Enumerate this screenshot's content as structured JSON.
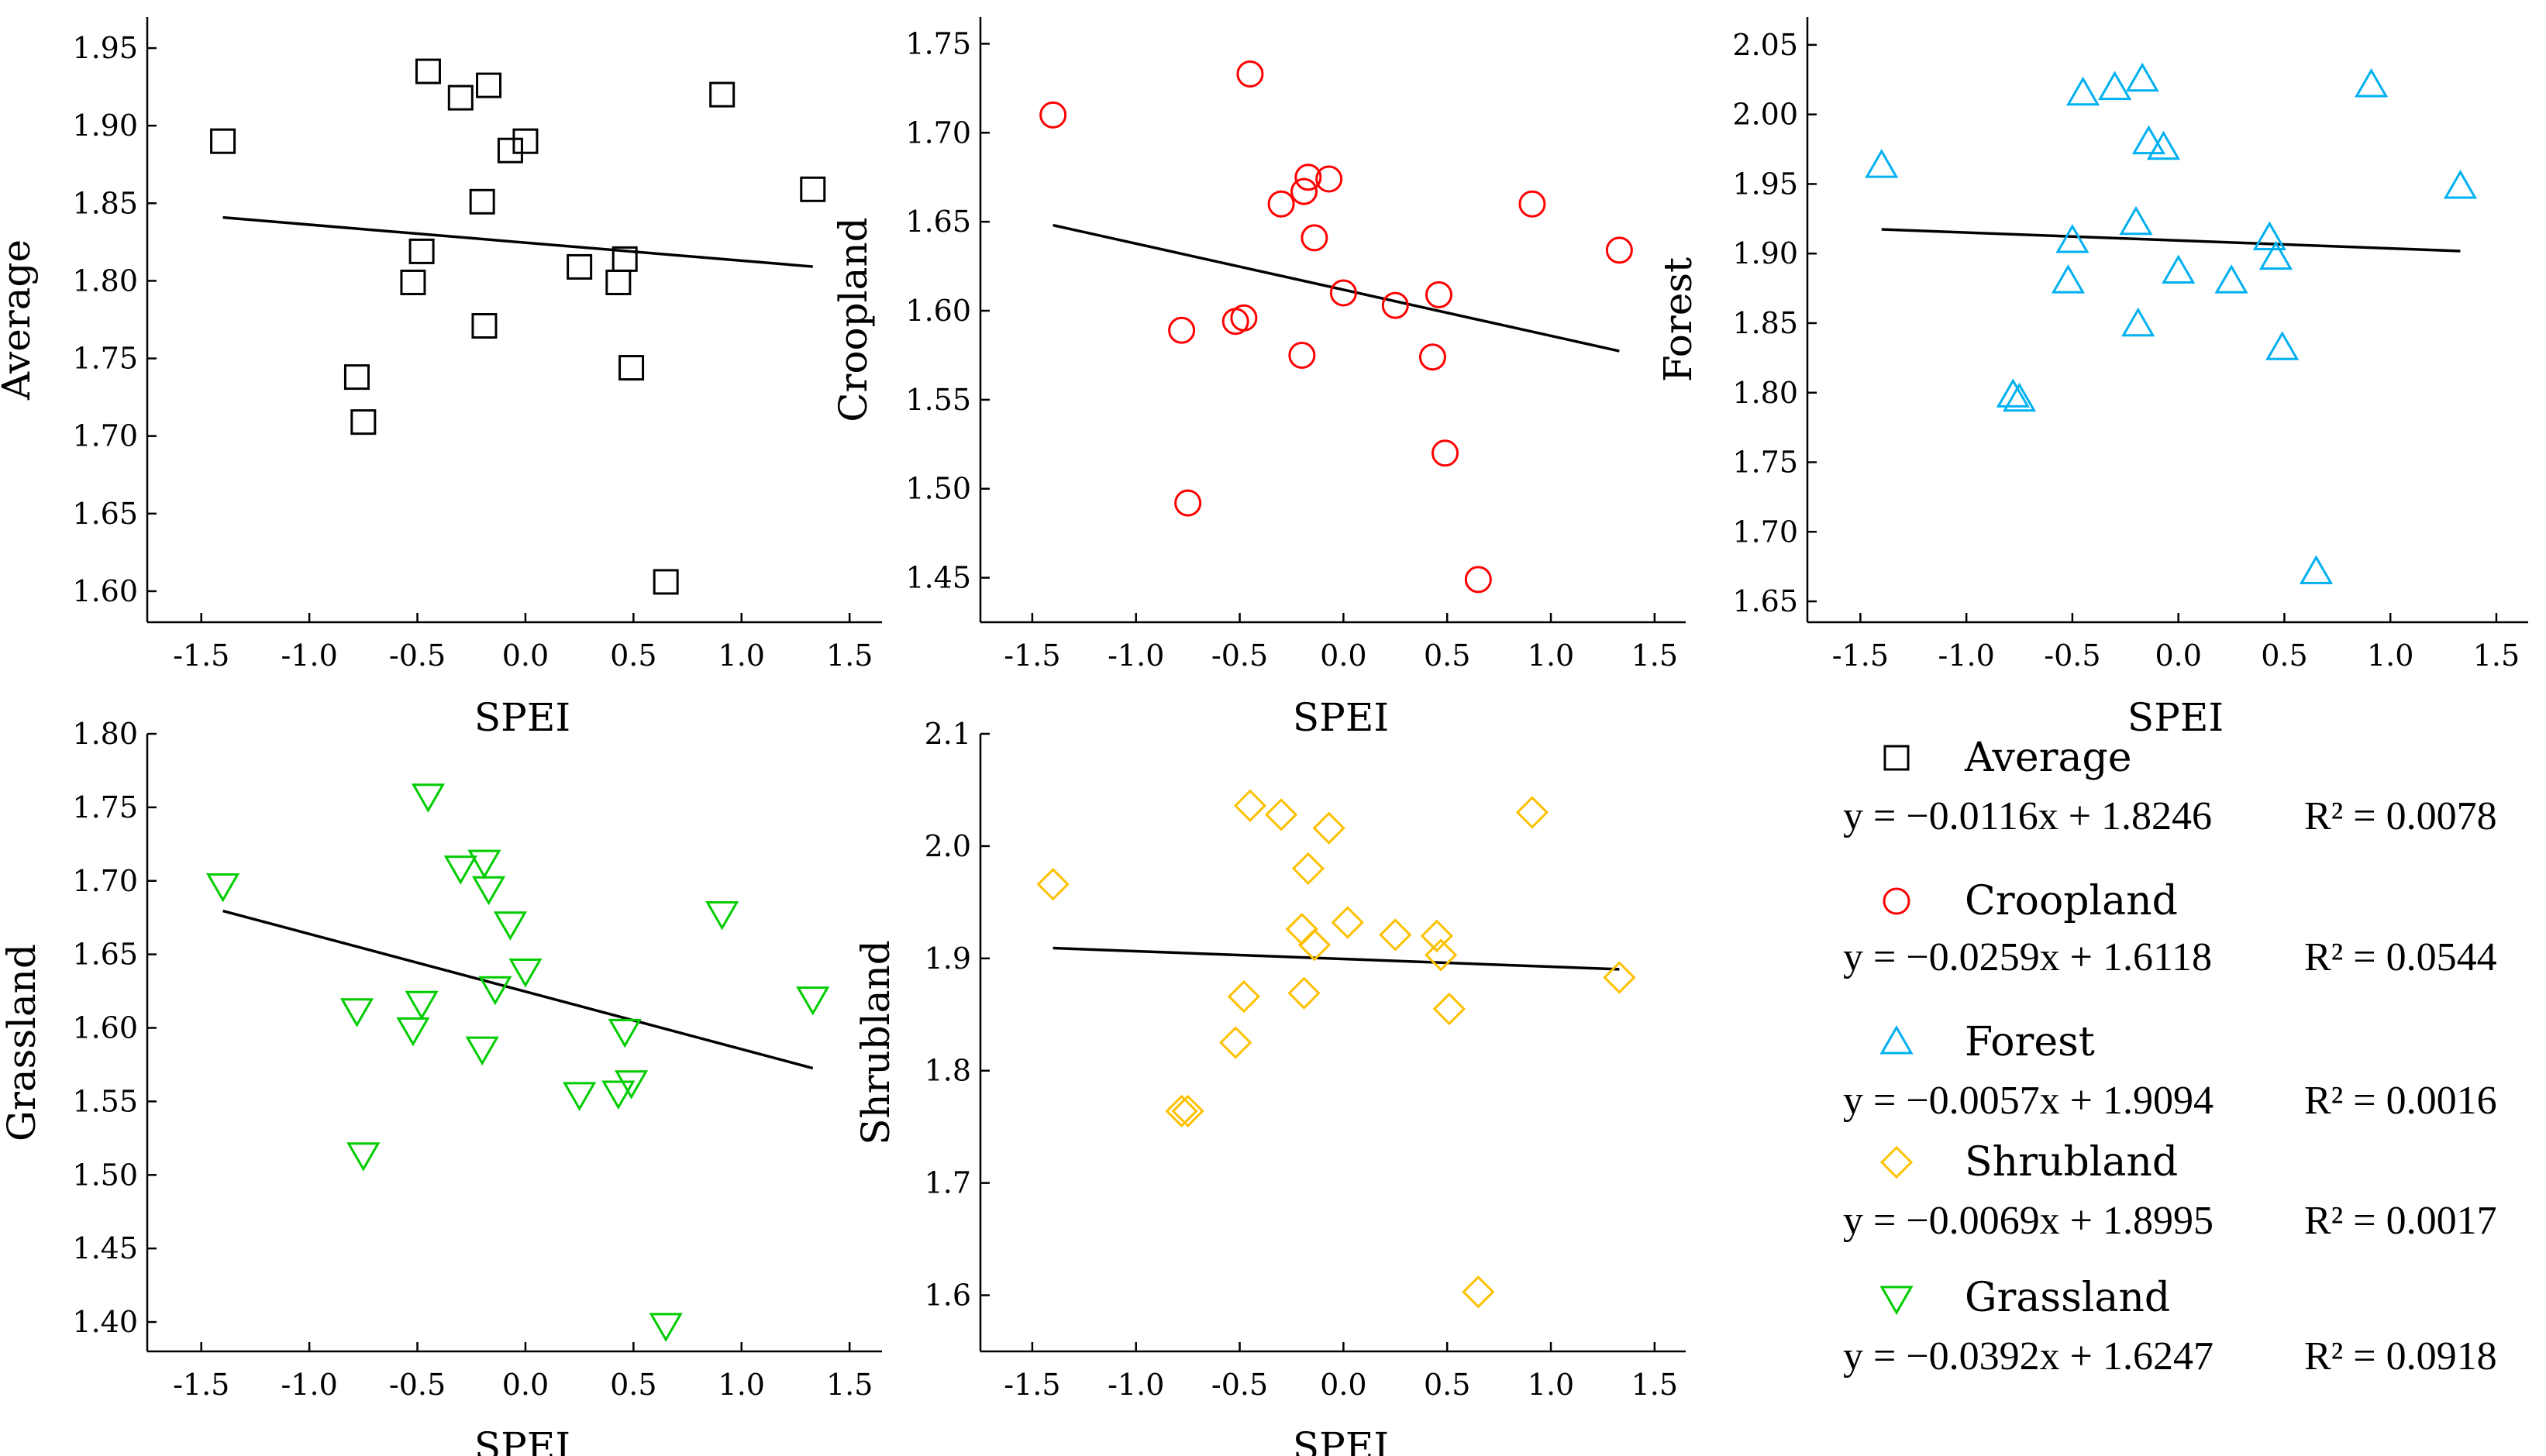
{
  "figure": {
    "x_label": "SPEI",
    "legend": [
      {
        "name": "Average",
        "equation": "y = −0.0116x + 1.8246",
        "r2": "R² = 0.0078",
        "color": "#000000",
        "marker": "square"
      },
      {
        "name": "Croopland",
        "equation": "y = −0.0259x + 1.6118",
        "r2": "R² = 0.0544",
        "color": "#ff0000",
        "marker": "circle"
      },
      {
        "name": "Forest",
        "equation": "y = −0.0057x + 1.9094",
        "r2": "R² = 0.0016",
        "color": "#00b0f0",
        "marker": "triangle-up"
      },
      {
        "name": "Shrubland",
        "equation": "y = −0.0069x + 1.8995",
        "r2": "R² = 0.0017",
        "color": "#ffc000",
        "marker": "diamond"
      },
      {
        "name": "Grassland",
        "equation": "y = −0.0392x + 1.6247",
        "r2": "R² = 0.0918",
        "color": "#00cc00",
        "marker": "triangle-down"
      }
    ]
  },
  "chart_data": [
    {
      "type": "scatter",
      "title": "",
      "xlabel": "SPEI",
      "ylabel": "Average",
      "marker": "square",
      "color": "#000000",
      "xlim": [
        -1.75,
        1.65
      ],
      "ylim": [
        1.58,
        1.97
      ],
      "xticks": [
        -1.5,
        -1.0,
        -0.5,
        0.0,
        0.5,
        1.0,
        1.5
      ],
      "xtick_labels": [
        "-1.5",
        "-1.0",
        "-0.5",
        "0.0",
        "0.5",
        "1.0",
        "1.5"
      ],
      "yticks": [
        1.6,
        1.65,
        1.7,
        1.75,
        1.8,
        1.85,
        1.9,
        1.95
      ],
      "ytick_labels": [
        "1.60",
        "1.65",
        "1.70",
        "1.75",
        "1.80",
        "1.85",
        "1.90",
        "1.95"
      ],
      "x": [
        -1.4,
        -0.78,
        -0.75,
        -0.52,
        -0.48,
        -0.45,
        -0.3,
        -0.2,
        -0.19,
        -0.17,
        -0.07,
        0.0,
        0.25,
        0.43,
        0.46,
        0.49,
        0.65,
        0.91,
        1.33
      ],
      "y": [
        1.89,
        1.738,
        1.709,
        1.799,
        1.819,
        1.935,
        1.918,
        1.851,
        1.771,
        1.926,
        1.884,
        1.89,
        1.809,
        1.799,
        1.814,
        1.744,
        1.606,
        1.92,
        1.859
      ],
      "fit": {
        "slope": -0.0116,
        "intercept": 1.8246,
        "x_range": [
          -1.4,
          1.33
        ]
      }
    },
    {
      "type": "scatter",
      "title": "",
      "xlabel": "SPEI",
      "ylabel": "Croopland",
      "marker": "circle",
      "color": "#ff0000",
      "xlim": [
        -1.75,
        1.65
      ],
      "ylim": [
        1.425,
        1.765
      ],
      "xticks": [
        -1.5,
        -1.0,
        -0.5,
        0.0,
        0.5,
        1.0,
        1.5
      ],
      "xtick_labels": [
        "-1.5",
        "-1.0",
        "-0.5",
        "0.0",
        "0.5",
        "1.0",
        "1.5"
      ],
      "yticks": [
        1.45,
        1.5,
        1.55,
        1.6,
        1.65,
        1.7,
        1.75
      ],
      "ytick_labels": [
        "1.45",
        "1.50",
        "1.55",
        "1.60",
        "1.65",
        "1.70",
        "1.75"
      ],
      "x": [
        -1.4,
        -0.78,
        -0.75,
        -0.52,
        -0.48,
        -0.45,
        -0.3,
        -0.2,
        -0.19,
        -0.17,
        -0.14,
        -0.07,
        0.0,
        0.25,
        0.43,
        0.46,
        0.49,
        0.65,
        0.91,
        1.33
      ],
      "y": [
        1.71,
        1.589,
        1.492,
        1.594,
        1.596,
        1.733,
        1.66,
        1.575,
        1.667,
        1.675,
        1.641,
        1.674,
        1.61,
        1.603,
        1.574,
        1.609,
        1.52,
        1.449,
        1.66,
        1.634
      ],
      "fit": {
        "slope": -0.0259,
        "intercept": 1.6118,
        "x_range": [
          -1.4,
          1.33
        ]
      }
    },
    {
      "type": "scatter",
      "title": "",
      "xlabel": "SPEI",
      "ylabel": "Forest",
      "marker": "triangle-up",
      "color": "#00b0f0",
      "xlim": [
        -1.75,
        1.65
      ],
      "ylim": [
        1.635,
        2.07
      ],
      "xticks": [
        -1.5,
        -1.0,
        -0.5,
        0.0,
        0.5,
        1.0,
        1.5
      ],
      "xtick_labels": [
        "-1.5",
        "-1.0",
        "-0.5",
        "0.0",
        "0.5",
        "1.0",
        "1.5"
      ],
      "yticks": [
        1.65,
        1.7,
        1.75,
        1.8,
        1.85,
        1.9,
        1.95,
        2.0,
        2.05
      ],
      "ytick_labels": [
        "1.65",
        "1.70",
        "1.75",
        "1.80",
        "1.85",
        "1.90",
        "1.95",
        "2.00",
        "2.05"
      ],
      "x": [
        -1.4,
        -0.78,
        -0.75,
        -0.52,
        -0.5,
        -0.45,
        -0.3,
        -0.2,
        -0.19,
        -0.17,
        -0.14,
        -0.07,
        0.0,
        0.25,
        0.43,
        0.46,
        0.49,
        0.65,
        0.91,
        1.33
      ],
      "y": [
        1.963,
        1.798,
        1.795,
        1.88,
        1.909,
        2.015,
        2.019,
        1.922,
        1.849,
        2.025,
        1.98,
        1.976,
        1.887,
        1.88,
        1.911,
        1.897,
        1.832,
        1.671,
        2.021,
        1.948
      ],
      "fit": {
        "slope": -0.0057,
        "intercept": 1.9094,
        "x_range": [
          -1.4,
          1.33
        ]
      }
    },
    {
      "type": "scatter",
      "title": "",
      "xlabel": "SPEI",
      "ylabel": "Grassland",
      "marker": "triangle-down",
      "color": "#00cc00",
      "xlim": [
        -1.75,
        1.65
      ],
      "ylim": [
        1.38,
        1.8
      ],
      "xticks": [
        -1.5,
        -1.0,
        -0.5,
        0.0,
        0.5,
        1.0,
        1.5
      ],
      "xtick_labels": [
        "-1.5",
        "-1.0",
        "-0.5",
        "0.0",
        "0.5",
        "1.0",
        "1.5"
      ],
      "yticks": [
        1.4,
        1.45,
        1.5,
        1.55,
        1.6,
        1.65,
        1.7,
        1.75,
        1.8
      ],
      "ytick_labels": [
        "1.40",
        "1.45",
        "1.50",
        "1.55",
        "1.60",
        "1.65",
        "1.70",
        "1.75",
        "1.80"
      ],
      "x": [
        -1.4,
        -0.78,
        -0.75,
        -0.52,
        -0.48,
        -0.45,
        -0.3,
        -0.2,
        -0.19,
        -0.17,
        -0.14,
        -0.07,
        0.0,
        0.25,
        0.43,
        0.46,
        0.49,
        0.65,
        0.91,
        1.33
      ],
      "y": [
        1.697,
        1.612,
        1.514,
        1.599,
        1.617,
        1.758,
        1.709,
        1.586,
        1.713,
        1.695,
        1.627,
        1.671,
        1.639,
        1.555,
        1.556,
        1.598,
        1.563,
        1.398,
        1.678,
        1.62
      ],
      "fit": {
        "slope": -0.0392,
        "intercept": 1.6247,
        "x_range": [
          -1.4,
          1.33
        ]
      }
    },
    {
      "type": "scatter",
      "title": "",
      "xlabel": "SPEI",
      "ylabel": "Shrubland",
      "marker": "diamond",
      "color": "#ffc000",
      "xlim": [
        -1.75,
        1.65
      ],
      "ylim": [
        1.55,
        2.1
      ],
      "xticks": [
        -1.5,
        -1.0,
        -0.5,
        0.0,
        0.5,
        1.0,
        1.5
      ],
      "xtick_labels": [
        "-1.5",
        "-1.0",
        "-0.5",
        "0.0",
        "0.5",
        "1.0",
        "1.5"
      ],
      "yticks": [
        1.6,
        1.7,
        1.8,
        1.9,
        2.0,
        2.1
      ],
      "ytick_labels": [
        "1.6",
        "1.7",
        "1.8",
        "1.9",
        "2.0",
        "2.1"
      ],
      "x": [
        -1.4,
        -0.78,
        -0.75,
        -0.52,
        -0.48,
        -0.45,
        -0.3,
        -0.2,
        -0.19,
        -0.17,
        -0.14,
        -0.07,
        0.02,
        0.25,
        0.45,
        0.47,
        0.51,
        0.65,
        0.91,
        1.33
      ],
      "y": [
        1.966,
        1.764,
        1.764,
        1.825,
        1.866,
        2.036,
        2.028,
        1.926,
        1.869,
        1.98,
        1.912,
        2.016,
        1.932,
        1.921,
        1.92,
        1.903,
        1.855,
        1.603,
        2.03,
        1.883
      ],
      "fit": {
        "slope": -0.0069,
        "intercept": 1.8995,
        "x_range": [
          -1.4,
          1.33
        ]
      }
    }
  ]
}
